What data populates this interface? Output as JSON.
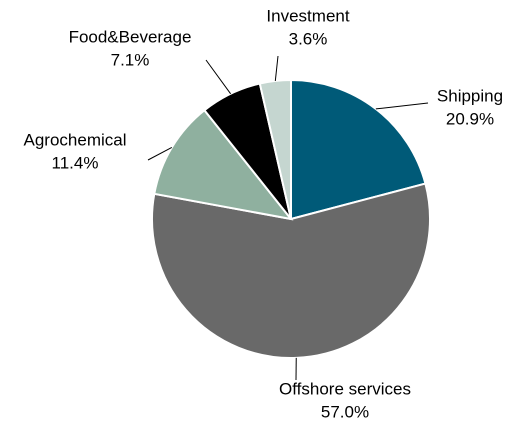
{
  "chart_data": {
    "type": "pie",
    "categories": [
      "Shipping",
      "Offshore services",
      "Agrochemical",
      "Food&Beverage",
      "Investment"
    ],
    "values": [
      20.9,
      57.0,
      11.4,
      7.1,
      3.6
    ],
    "value_labels": [
      "20.9%",
      "57.0%",
      "11.4%",
      "7.1%",
      "3.6%"
    ],
    "colors": [
      "#005a78",
      "#696969",
      "#8fb09f",
      "#000000",
      "#c5d6d0"
    ]
  }
}
